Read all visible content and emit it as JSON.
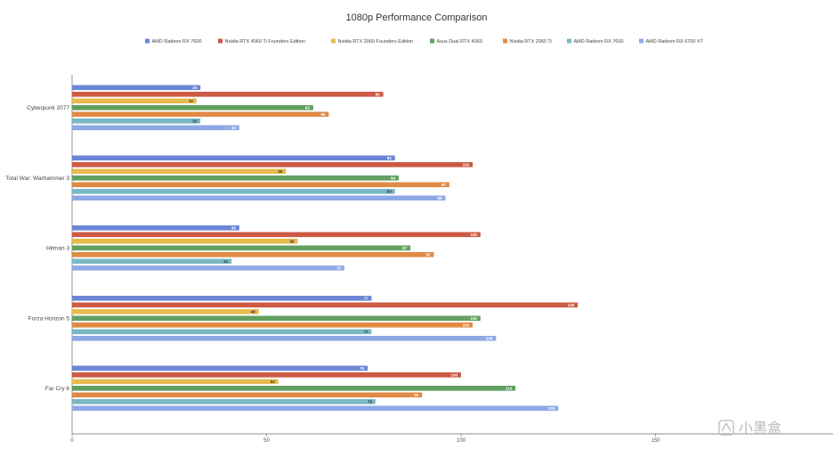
{
  "chart_data": {
    "type": "bar",
    "orientation": "horizontal",
    "title": "1080p Performance Comparison",
    "categories": [
      "Cyberpunk 2077",
      "Total War: Warhammer 3",
      "Hitman 3",
      "Forza Horizon 5",
      "Far Cry 6"
    ],
    "series": [
      {
        "name": "AMD Radeon RX 7600",
        "color": "#6b86d6",
        "values": [
          33,
          83,
          43,
          77,
          76
        ]
      },
      {
        "name": "Nvidia RTX 4060 Ti Founders Edition",
        "color": "#cc5a45",
        "values": [
          80,
          103,
          105,
          130,
          100
        ]
      },
      {
        "name": "Nvidia RTX 2060 Founders Edition",
        "color": "#e8bb4f",
        "values": [
          32,
          55,
          58,
          48,
          53
        ]
      },
      {
        "name": "Asus Dual RTX 4060",
        "color": "#62a062",
        "values": [
          62,
          84,
          87,
          105,
          114
        ]
      },
      {
        "name": "Nvidia RTX 2060 Ti",
        "color": "#e08a45",
        "values": [
          66,
          97,
          93,
          103,
          90
        ]
      },
      {
        "name": "AMD Radeon RX 7600",
        "color": "#79b9c4",
        "values": [
          33,
          83,
          41,
          77,
          78
        ]
      },
      {
        "name": "AMD Radeon RX 6700 XT",
        "color": "#8fa9e6",
        "values": [
          43,
          96,
          70,
          109,
          125
        ]
      }
    ],
    "x_ticks": [
      "0",
      "50",
      "100",
      "150"
    ],
    "xlim": [
      0,
      196
    ],
    "legend_position": "top",
    "grid": false
  },
  "watermark": "小黑盒"
}
